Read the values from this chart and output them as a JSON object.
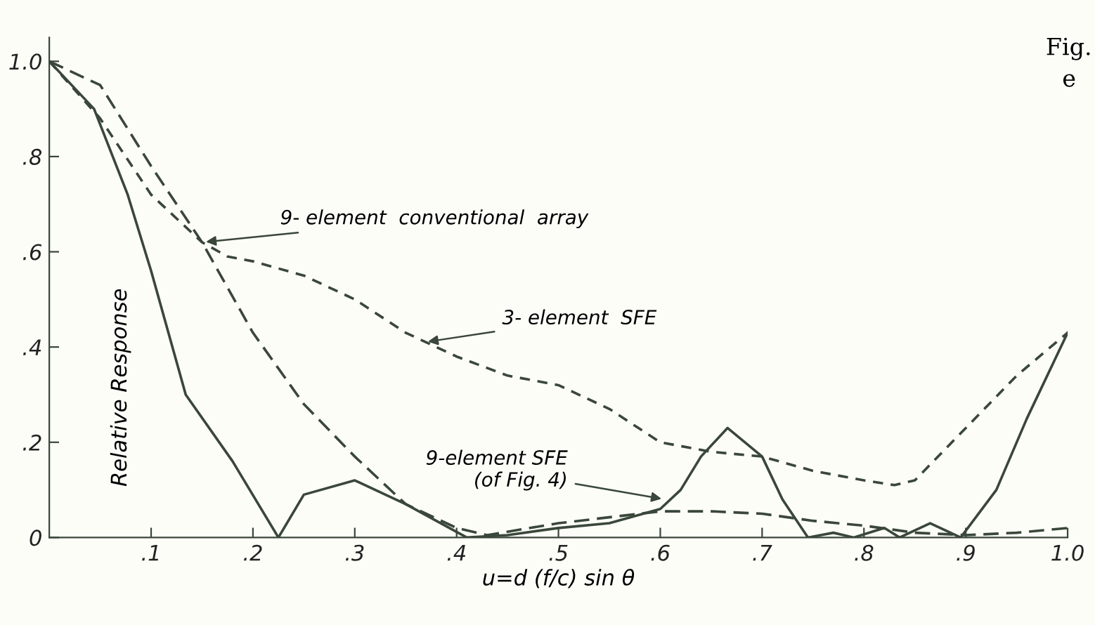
{
  "chart_data": {
    "type": "line",
    "xlabel": "u=d (f/c) sin θ",
    "ylabel": "Relative Response",
    "xlim": [
      0,
      1.0
    ],
    "ylim": [
      0,
      1.05
    ],
    "xticks": [
      {
        "value": 0.1,
        "label": ".1"
      },
      {
        "value": 0.2,
        "label": ".2"
      },
      {
        "value": 0.3,
        "label": ".3"
      },
      {
        "value": 0.4,
        "label": ".4"
      },
      {
        "value": 0.5,
        "label": ".5"
      },
      {
        "value": 0.6,
        "label": ".6"
      },
      {
        "value": 0.7,
        "label": ".7"
      },
      {
        "value": 0.8,
        "label": ".8"
      },
      {
        "value": 0.9,
        "label": ".9"
      },
      {
        "value": 1.0,
        "label": "1.0"
      }
    ],
    "yticks": [
      0,
      {
        "value": 0.2,
        "label": ".2"
      },
      {
        "value": 0.4,
        "label": ".4"
      },
      {
        "value": 0.6,
        "label": ".6"
      },
      {
        "value": 0.8,
        "label": ".8"
      },
      {
        "value": 1.0,
        "label": "1.0"
      }
    ],
    "grid": false,
    "legend": false,
    "marker": "none",
    "series": [
      {
        "color": "#3a473a",
        "line_style": "dashed",
        "x": [
          0,
          0.05,
          0.1,
          0.15,
          0.2,
          0.25,
          0.3,
          0.35,
          0.4,
          0.43,
          0.5,
          0.6,
          0.65,
          0.7,
          0.75,
          0.8,
          0.85,
          0.9,
          0.95,
          1.0
        ],
        "values": [
          1.0,
          0.95,
          0.78,
          0.62,
          0.43,
          0.28,
          0.17,
          0.07,
          0.02,
          0.005,
          0.03,
          0.055,
          0.055,
          0.05,
          0.035,
          0.025,
          0.01,
          0.005,
          0.01,
          0.02
        ]
      },
      {
        "color": "#3a473a",
        "line_style": "dashed",
        "x": [
          0,
          0.05,
          0.1,
          0.15,
          0.175,
          0.2,
          0.25,
          0.3,
          0.35,
          0.4,
          0.45,
          0.5,
          0.55,
          0.6,
          0.65,
          0.7,
          0.75,
          0.8,
          0.83,
          0.85,
          0.9,
          0.95,
          1.0
        ],
        "values": [
          1.0,
          0.88,
          0.72,
          0.62,
          0.59,
          0.58,
          0.55,
          0.5,
          0.43,
          0.38,
          0.34,
          0.32,
          0.27,
          0.2,
          0.18,
          0.17,
          0.14,
          0.12,
          0.11,
          0.12,
          0.23,
          0.34,
          0.43
        ]
      },
      {
        "color": "#3a473a",
        "line_style": "solid",
        "x": [
          0,
          0.044,
          0.077,
          0.1,
          0.134,
          0.18,
          0.225,
          0.25,
          0.3,
          0.35,
          0.41,
          0.45,
          0.5,
          0.55,
          0.6,
          0.62,
          0.64,
          0.666,
          0.7,
          0.72,
          0.745,
          0.77,
          0.79,
          0.82,
          0.835,
          0.865,
          0.895,
          0.93,
          0.96,
          1.0
        ],
        "values": [
          1.0,
          0.9,
          0.72,
          0.56,
          0.3,
          0.16,
          0.0,
          0.09,
          0.12,
          0.07,
          0.0,
          0.005,
          0.02,
          0.03,
          0.06,
          0.1,
          0.17,
          0.23,
          0.17,
          0.08,
          0.0,
          0.01,
          0.0,
          0.02,
          0.0,
          0.03,
          0.0,
          0.1,
          0.25,
          0.43
        ]
      }
    ],
    "annotations": [
      {
        "text": "9- element  conventional  array",
        "x": 0.15,
        "y": 0.62
      },
      {
        "text": "3- element  SFE",
        "x": 0.368,
        "y": 0.41
      },
      {
        "text": "9-element SFE\n(of Fig. 4)",
        "x": 0.605,
        "y": 0.08
      },
      "Fig.",
      "e"
    ]
  }
}
